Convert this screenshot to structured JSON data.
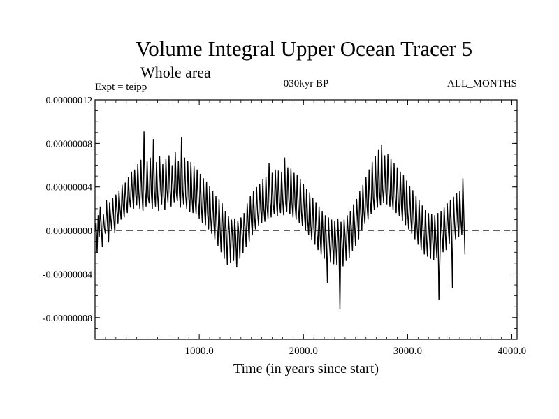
{
  "chart_data": {
    "type": "line",
    "title": "Volume Integral Upper Ocean Tracer 5",
    "subtitle": "Whole area",
    "experiment_label": "Expt = teipp",
    "period_label": "030kyr BP",
    "months_label": "ALL_MONTHS",
    "xlabel": "Time (in years since start)",
    "ylabel": "",
    "xlim": [
      0,
      4050
    ],
    "ylim": [
      -1e-07,
      1.2e-07
    ],
    "x_ticks": [
      1000,
      2000,
      3000,
      4000
    ],
    "x_tick_labels": [
      "1000.0",
      "2000.0",
      "3000.0",
      "4000.0"
    ],
    "y_ticks": [
      -8e-08,
      -4e-08,
      0,
      4e-08,
      8e-08,
      1.2e-07
    ],
    "y_tick_labels": [
      "-0.00000008",
      "-0.00000004",
      "0.00000000",
      "0.00000004",
      "0.00000008",
      "0.00000012"
    ],
    "reference_line": {
      "y": 0,
      "style": "dashed"
    },
    "grid": false,
    "series": [
      {
        "name": "Volume Integral Upper Ocean Tracer 5",
        "color": "#000000",
        "x_start": 0,
        "x_step": 10,
        "values": [
          -0.1,
          0.7,
          -2.1,
          1.4,
          -0.6,
          2.2,
          0.4,
          -1.5,
          1.5,
          0.2,
          -0.3,
          2.8,
          0.5,
          -1.1,
          2.6,
          1.2,
          0.1,
          3.0,
          1.1,
          -0.2,
          3.3,
          1.8,
          0.6,
          3.6,
          2.0,
          1.0,
          4.2,
          2.3,
          1.2,
          4.4,
          2.8,
          1.6,
          4.9,
          3.0,
          2.1,
          5.4,
          3.2,
          2.0,
          5.6,
          3.4,
          2.3,
          6.1,
          3.5,
          2.0,
          6.5,
          3.4,
          1.8,
          9.1,
          3.6,
          2.2,
          6.4,
          3.1,
          2.5,
          6.7,
          3.5,
          2.0,
          8.4,
          3.6,
          2.2,
          6.3,
          3.3,
          1.8,
          6.8,
          3.7,
          2.4,
          6.1,
          3.1,
          1.9,
          6.6,
          3.8,
          2.6,
          6.9,
          3.6,
          2.2,
          6.0,
          3.9,
          2.6,
          7.2,
          3.5,
          2.7,
          6.4,
          3.4,
          2.1,
          8.6,
          3.7,
          2.4,
          6.7,
          3.2,
          2.0,
          6.4,
          3.0,
          1.7,
          6.3,
          3.1,
          1.6,
          5.9,
          2.8,
          1.5,
          5.6,
          2.7,
          1.1,
          5.2,
          2.3,
          0.7,
          4.8,
          2.0,
          0.5,
          4.5,
          1.6,
          0.1,
          4.1,
          1.2,
          -0.3,
          3.6,
          0.8,
          -0.8,
          3.2,
          0.4,
          -1.4,
          2.9,
          0.2,
          -2.0,
          2.5,
          -0.1,
          -2.6,
          1.8,
          -0.4,
          -3.2,
          1.3,
          -0.2,
          -3.0,
          1.0,
          -0.5,
          -2.8,
          1.1,
          -0.6,
          -3.4,
          0.9,
          -0.2,
          -2.6,
          1.2,
          0.0,
          -2.1,
          1.6,
          0.3,
          -1.5,
          2.5,
          0.6,
          -1.0,
          3.2,
          0.9,
          -0.4,
          3.6,
          1.2,
          0.1,
          4.0,
          1.6,
          0.4,
          4.3,
          1.9,
          0.7,
          4.7,
          2.0,
          0.8,
          4.9,
          2.3,
          1.1,
          6.2,
          2.6,
          1.2,
          5.3,
          2.4,
          1.5,
          5.6,
          2.8,
          1.3,
          5.5,
          2.6,
          1.6,
          5.4,
          2.9,
          1.4,
          6.7,
          2.5,
          1.7,
          5.8,
          2.8,
          1.5,
          5.7,
          2.6,
          1.2,
          5.3,
          2.3,
          1.0,
          5.1,
          2.1,
          0.7,
          4.7,
          1.8,
          0.4,
          4.3,
          1.4,
          0.0,
          3.8,
          1.0,
          -0.4,
          3.5,
          0.6,
          -0.9,
          3.0,
          0.2,
          -1.3,
          2.6,
          -0.2,
          -1.8,
          2.2,
          -0.5,
          -2.2,
          1.8,
          -0.8,
          -2.6,
          1.4,
          -1.0,
          -4.8,
          1.2,
          -1.2,
          -2.9,
          1.0,
          -1.3,
          -3.1,
          0.9,
          -1.0,
          -3.2,
          1.1,
          -1.2,
          -7.2,
          0.8,
          -0.9,
          -3.3,
          1.0,
          -0.6,
          -2.8,
          1.4,
          -0.3,
          -2.5,
          1.8,
          0.2,
          -1.9,
          2.4,
          0.6,
          -1.4,
          2.9,
          1.0,
          -0.8,
          3.6,
          1.5,
          0.0,
          4.2,
          1.9,
          0.6,
          4.9,
          2.3,
          1.0,
          5.6,
          2.7,
          1.5,
          6.3,
          3.0,
          1.9,
          6.8,
          3.3,
          2.1,
          7.4,
          3.5,
          2.3,
          7.9,
          3.8,
          2.5,
          6.9,
          3.6,
          2.4,
          7.0,
          3.4,
          2.2,
          6.6,
          3.2,
          1.9,
          6.2,
          3.0,
          1.6,
          5.8,
          2.7,
          1.3,
          5.4,
          2.4,
          0.9,
          5.1,
          2.0,
          0.5,
          4.6,
          1.6,
          0.1,
          4.1,
          1.2,
          -0.3,
          3.7,
          0.8,
          -0.8,
          3.2,
          0.4,
          -1.3,
          2.8,
          0.0,
          -1.8,
          2.3,
          -0.3,
          -2.2,
          1.9,
          -0.6,
          -2.4,
          1.6,
          -0.7,
          -2.6,
          1.5,
          -0.8,
          -2.7,
          1.4,
          -0.6,
          -2.5,
          1.6,
          -6.4,
          -2.3,
          1.8,
          -0.3,
          -2.0,
          2.1,
          -0.1,
          -1.8,
          2.5,
          0.2,
          -1.2,
          2.8,
          0.4,
          -5.3,
          3.1,
          0.6,
          -0.8,
          3.4,
          0.8,
          -0.6,
          3.6,
          1.0,
          -0.4,
          4.8,
          1.1,
          -2.2
        ]
      }
    ]
  }
}
